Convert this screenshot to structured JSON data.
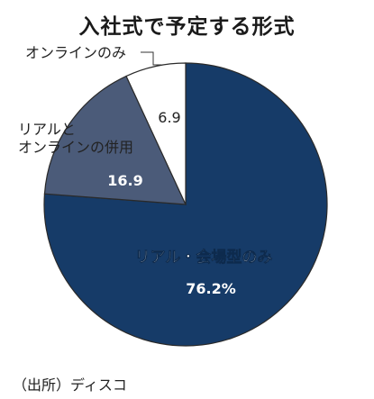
{
  "chart_data": {
    "type": "pie",
    "title": "入社式で予定する形式",
    "categories": [
      "リアル・会場型のみ",
      "リアルとオンラインの併用",
      "オンラインのみ"
    ],
    "values": [
      76.2,
      16.9,
      6.9
    ],
    "value_labels": [
      "76.2%",
      "16.9",
      "6.9"
    ],
    "start": "top",
    "direction": "clockwise",
    "colors": [
      "#163b68",
      "#4b5b79",
      "#ffffff"
    ],
    "label_colors": [
      "#ffffff",
      "#ffffff",
      "#222222"
    ]
  },
  "labels": {
    "slice0": "リアル・会場型のみ",
    "slice1_line1": "リアルと",
    "slice1_line2": "オンラインの併用",
    "slice2_callout": "オンラインのみ"
  },
  "source": "（出所）ディスコ"
}
